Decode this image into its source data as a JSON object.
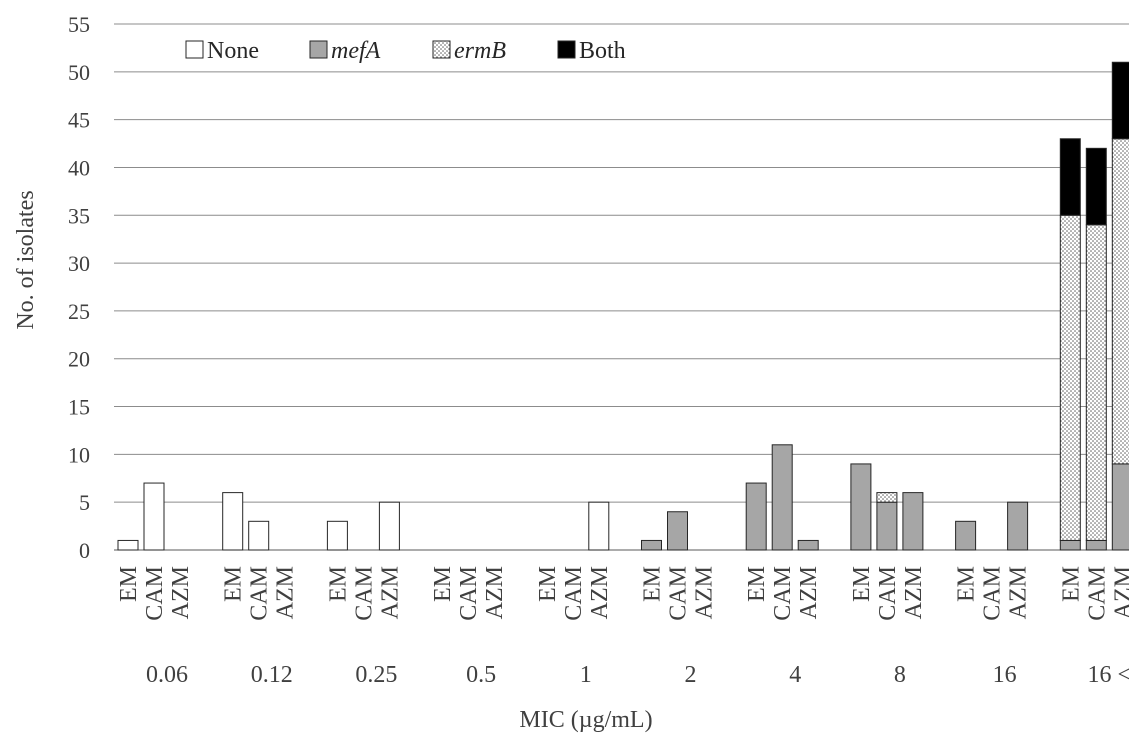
{
  "chart_data": {
    "type": "bar",
    "stacked": true,
    "title": "",
    "xlabel": "MIC (µg/mL)",
    "ylabel": "No. of isolates",
    "ylim": [
      0,
      55
    ],
    "yticks": [
      0,
      5,
      10,
      15,
      20,
      25,
      30,
      35,
      40,
      45,
      50,
      55
    ],
    "grid": true,
    "legend_position": "top-left",
    "groups": [
      "0.06",
      "0.12",
      "0.25",
      "0.5",
      "1",
      "2",
      "4",
      "8",
      "16",
      "16 <"
    ],
    "subcategories": [
      "EM",
      "CAM",
      "AZM"
    ],
    "series": [
      {
        "name": "None",
        "italic": false,
        "color": "#ffffff",
        "pattern": "solid",
        "values": [
          [
            1,
            7,
            0
          ],
          [
            6,
            3,
            0
          ],
          [
            3,
            0,
            5
          ],
          [
            0,
            0,
            0
          ],
          [
            0,
            0,
            5
          ],
          [
            0,
            0,
            0
          ],
          [
            0,
            0,
            0
          ],
          [
            0,
            0,
            0
          ],
          [
            0,
            0,
            0
          ],
          [
            0,
            0,
            0
          ]
        ]
      },
      {
        "name": "mefA",
        "italic": true,
        "color": "#a6a6a6",
        "pattern": "solid",
        "values": [
          [
            0,
            0,
            0
          ],
          [
            0,
            0,
            0
          ],
          [
            0,
            0,
            0
          ],
          [
            0,
            0,
            0
          ],
          [
            0,
            0,
            0
          ],
          [
            1,
            4,
            0
          ],
          [
            7,
            11,
            1
          ],
          [
            9,
            5,
            6
          ],
          [
            3,
            0,
            5
          ],
          [
            1,
            1,
            9
          ]
        ]
      },
      {
        "name": "ermB",
        "italic": true,
        "color": "#ffffff",
        "pattern": "dotted",
        "values": [
          [
            0,
            0,
            0
          ],
          [
            0,
            0,
            0
          ],
          [
            0,
            0,
            0
          ],
          [
            0,
            0,
            0
          ],
          [
            0,
            0,
            0
          ],
          [
            0,
            0,
            0
          ],
          [
            0,
            0,
            0
          ],
          [
            0,
            1,
            0
          ],
          [
            0,
            0,
            0
          ],
          [
            34,
            33,
            34
          ]
        ]
      },
      {
        "name": "Both",
        "italic": false,
        "color": "#000000",
        "pattern": "solid",
        "values": [
          [
            0,
            0,
            0
          ],
          [
            0,
            0,
            0
          ],
          [
            0,
            0,
            0
          ],
          [
            0,
            0,
            0
          ],
          [
            0,
            0,
            0
          ],
          [
            0,
            0,
            0
          ],
          [
            0,
            0,
            0
          ],
          [
            0,
            0,
            0
          ],
          [
            0,
            0,
            0
          ],
          [
            8,
            8,
            8
          ]
        ]
      }
    ]
  }
}
